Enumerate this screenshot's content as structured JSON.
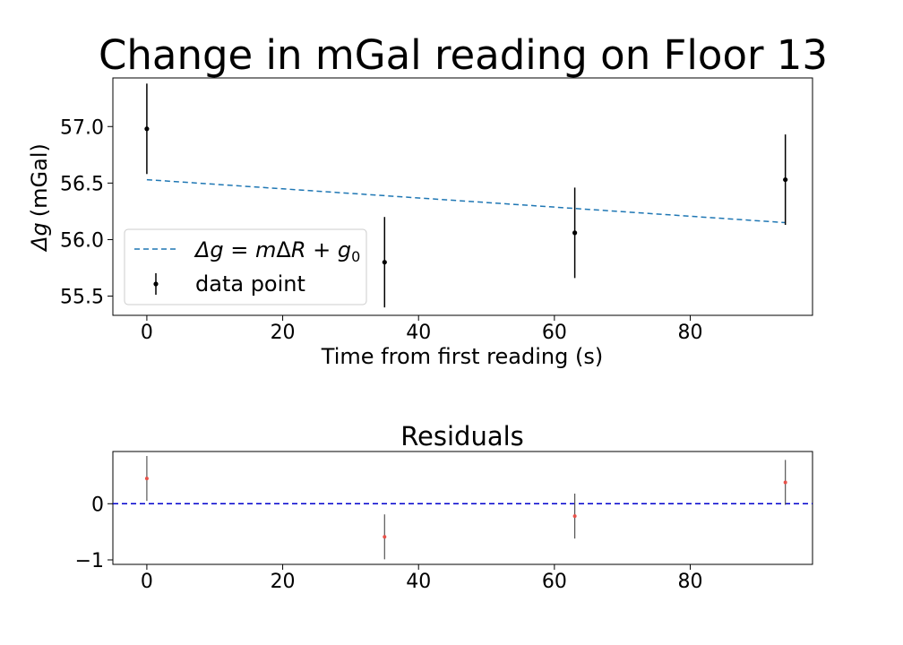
{
  "figure": {
    "title": "Change in mGal reading on Floor 13"
  },
  "chart_data": [
    {
      "type": "scatter",
      "title": "Change in mGal reading on Floor 13",
      "xlabel": "Time from first reading (s)",
      "ylabel_symbol": "Δg",
      "ylabel_unit": "(mGal)",
      "xlim": [
        -5,
        98
      ],
      "ylim": [
        55.33,
        57.43
      ],
      "xticks": [
        0,
        20,
        40,
        60,
        80
      ],
      "yticks": [
        55.5,
        56.0,
        56.5,
        57.0
      ],
      "ytick_labels": [
        "55.5",
        "56.0",
        "56.5",
        "57.0"
      ],
      "grid": false,
      "legend_position": "lower-left",
      "series": [
        {
          "name": "data point",
          "kind": "errorbar",
          "color": "#000000",
          "x": [
            0,
            35,
            63,
            94
          ],
          "y": [
            56.98,
            55.8,
            56.06,
            56.53
          ],
          "yerr": [
            0.4,
            0.4,
            0.4,
            0.4
          ]
        },
        {
          "name": "Δg = mΔR + g₀",
          "kind": "fit-line",
          "color": "#1f77b4",
          "dash": "dashed",
          "x": [
            0,
            94
          ],
          "y": [
            56.53,
            56.15
          ]
        }
      ]
    },
    {
      "type": "scatter",
      "title": "Residuals",
      "xlim": [
        -5,
        98
      ],
      "ylim": [
        -1.08,
        0.93
      ],
      "xticks": [
        0,
        20,
        40,
        60,
        80
      ],
      "yticks": [
        -1,
        0
      ],
      "ytick_labels": [
        "−1",
        "0"
      ],
      "grid": false,
      "zero_line_color": "#0000cc",
      "series": [
        {
          "name": "residual",
          "kind": "errorbar",
          "color": "#e8524a",
          "errorbar_color": "#555555",
          "x": [
            0,
            35,
            63,
            94
          ],
          "y": [
            0.45,
            -0.59,
            -0.22,
            0.38
          ],
          "yerr": [
            0.4,
            0.4,
            0.4,
            0.4
          ]
        }
      ]
    }
  ]
}
